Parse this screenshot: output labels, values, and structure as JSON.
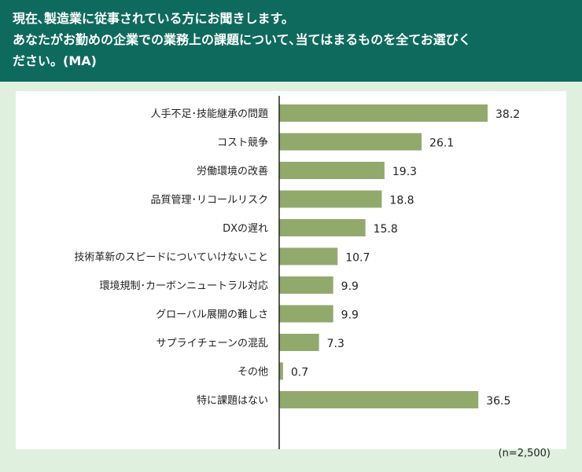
{
  "header": {
    "lines": [
      "現在､製造業に従事されている方にお聞きします。",
      "あなたがお勤めの企業での業務上の課題について､当てはまるものを全てお選びく",
      "ださい。(MA)"
    ]
  },
  "colors": {
    "header_bg": "#0f6a5e",
    "page_bg": "#dff0de",
    "bar": "#92a96c"
  },
  "chart_data": {
    "type": "bar",
    "orientation": "horizontal",
    "categories": [
      "人手不足･技能継承の問題",
      "コスト競争",
      "労働環境の改善",
      "品質管理･リコールリスク",
      "DXの遅れ",
      "技術革新のスピードについていけないこと",
      "環境規制･カーボンニュートラル対応",
      "グローバル展開の難しさ",
      "サプライチェーンの混乱",
      "その他",
      "特に課題はない"
    ],
    "values": [
      38.2,
      26.1,
      19.3,
      18.8,
      15.8,
      10.7,
      9.9,
      9.9,
      7.3,
      0.7,
      36.5
    ],
    "value_labels": [
      "38.2",
      "26.1",
      "19.3",
      "18.8",
      "15.8",
      "10.7",
      "9.9",
      "9.9",
      "7.3",
      "0.7",
      "36.5"
    ],
    "xlim": [
      0,
      45
    ],
    "grid": false,
    "legend": "none",
    "note": "(n=2,500)"
  }
}
